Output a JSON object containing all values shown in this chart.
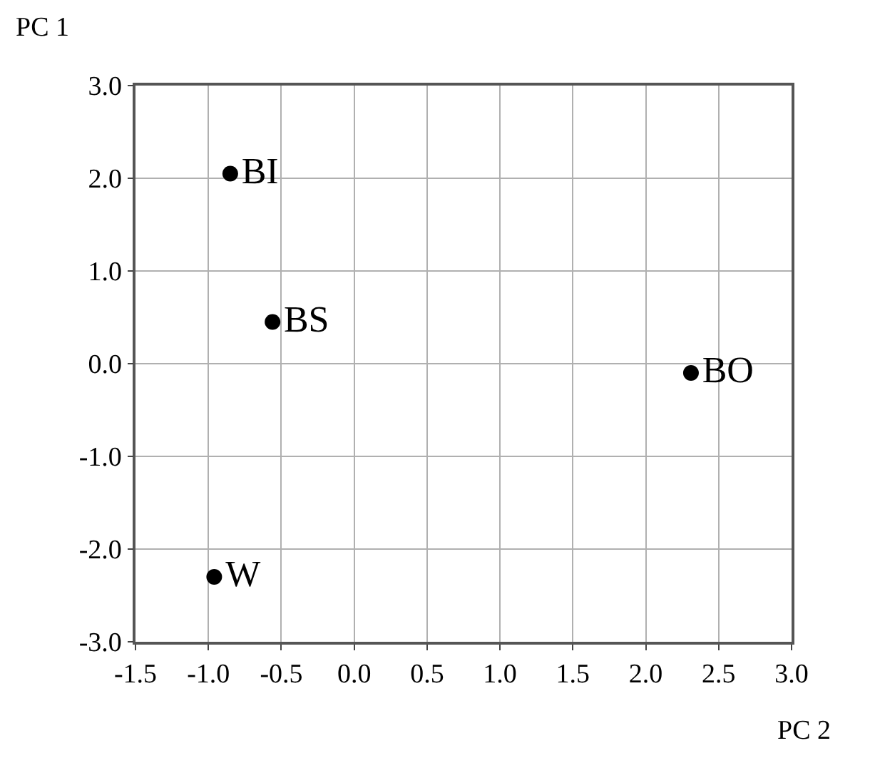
{
  "chart_data": {
    "type": "scatter",
    "xlabel": "PC 2",
    "ylabel": "PC 1",
    "series": [
      {
        "name": "BI",
        "color": "#000000",
        "x": [
          -0.85
        ],
        "values": [
          2.05
        ]
      },
      {
        "name": "BS",
        "color": "#000000",
        "x": [
          -0.56
        ],
        "values": [
          0.45
        ]
      },
      {
        "name": "BO",
        "color": "#000000",
        "x": [
          2.31
        ],
        "values": [
          -0.1
        ]
      },
      {
        "name": "W",
        "color": "#000000",
        "x": [
          -0.96
        ],
        "values": [
          -2.3
        ]
      }
    ],
    "xlim": [
      -1.5,
      3.0
    ],
    "ylim": [
      -3.0,
      3.0
    ],
    "xticks": [
      {
        "value": -1.5,
        "label": "-1.5"
      },
      {
        "value": -1.0,
        "label": "-1.0"
      },
      {
        "value": -0.5,
        "label": "-0.5"
      },
      {
        "value": 0,
        "label": "0.0"
      },
      {
        "value": 0.5,
        "label": "0.5"
      },
      {
        "value": 1.0,
        "label": "1.0"
      },
      {
        "value": 1.5,
        "label": "1.5"
      },
      {
        "value": 2.0,
        "label": "2.0"
      },
      {
        "value": 2.5,
        "label": "2.5"
      },
      {
        "value": 3.0,
        "label": "3.0"
      }
    ],
    "yticks": [
      {
        "value": -3.0,
        "label": "-3.0"
      },
      {
        "value": -2.0,
        "label": "-2.0"
      },
      {
        "value": -1.0,
        "label": "-1.0"
      },
      {
        "value": 0,
        "label": "0.0"
      },
      {
        "value": 1.0,
        "label": "1.0"
      },
      {
        "value": 2.0,
        "label": "2.0"
      },
      {
        "value": 3.0,
        "label": "3.0"
      }
    ],
    "grid": true,
    "marker": "circle",
    "legend": false
  }
}
